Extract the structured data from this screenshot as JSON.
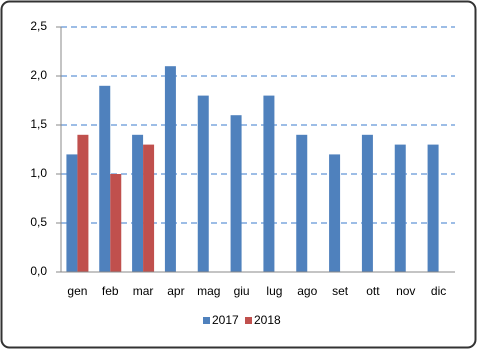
{
  "chart_data": {
    "type": "bar",
    "categories": [
      "gen",
      "feb",
      "mar",
      "apr",
      "mag",
      "giu",
      "lug",
      "ago",
      "set",
      "ott",
      "nov",
      "dic"
    ],
    "series": [
      {
        "name": "2017",
        "color": "#4f81bd",
        "values": [
          1.2,
          1.9,
          1.4,
          2.1,
          1.8,
          1.6,
          1.8,
          1.4,
          1.2,
          1.4,
          1.3,
          1.3
        ]
      },
      {
        "name": "2018",
        "color": "#c0504d",
        "values": [
          1.4,
          1.0,
          1.3,
          null,
          null,
          null,
          null,
          null,
          null,
          null,
          null,
          null
        ]
      }
    ],
    "ylim": [
      0,
      2.5
    ],
    "yticks": [
      {
        "value": 0,
        "label": "0,0"
      },
      {
        "value": 0.5,
        "label": "0,5"
      },
      {
        "value": 1,
        "label": "1,0"
      },
      {
        "value": 1.5,
        "label": "1,5"
      },
      {
        "value": 2,
        "label": "2,0"
      },
      {
        "value": 2.5,
        "label": "2,5"
      }
    ],
    "grid": true,
    "legend": "bottom"
  }
}
